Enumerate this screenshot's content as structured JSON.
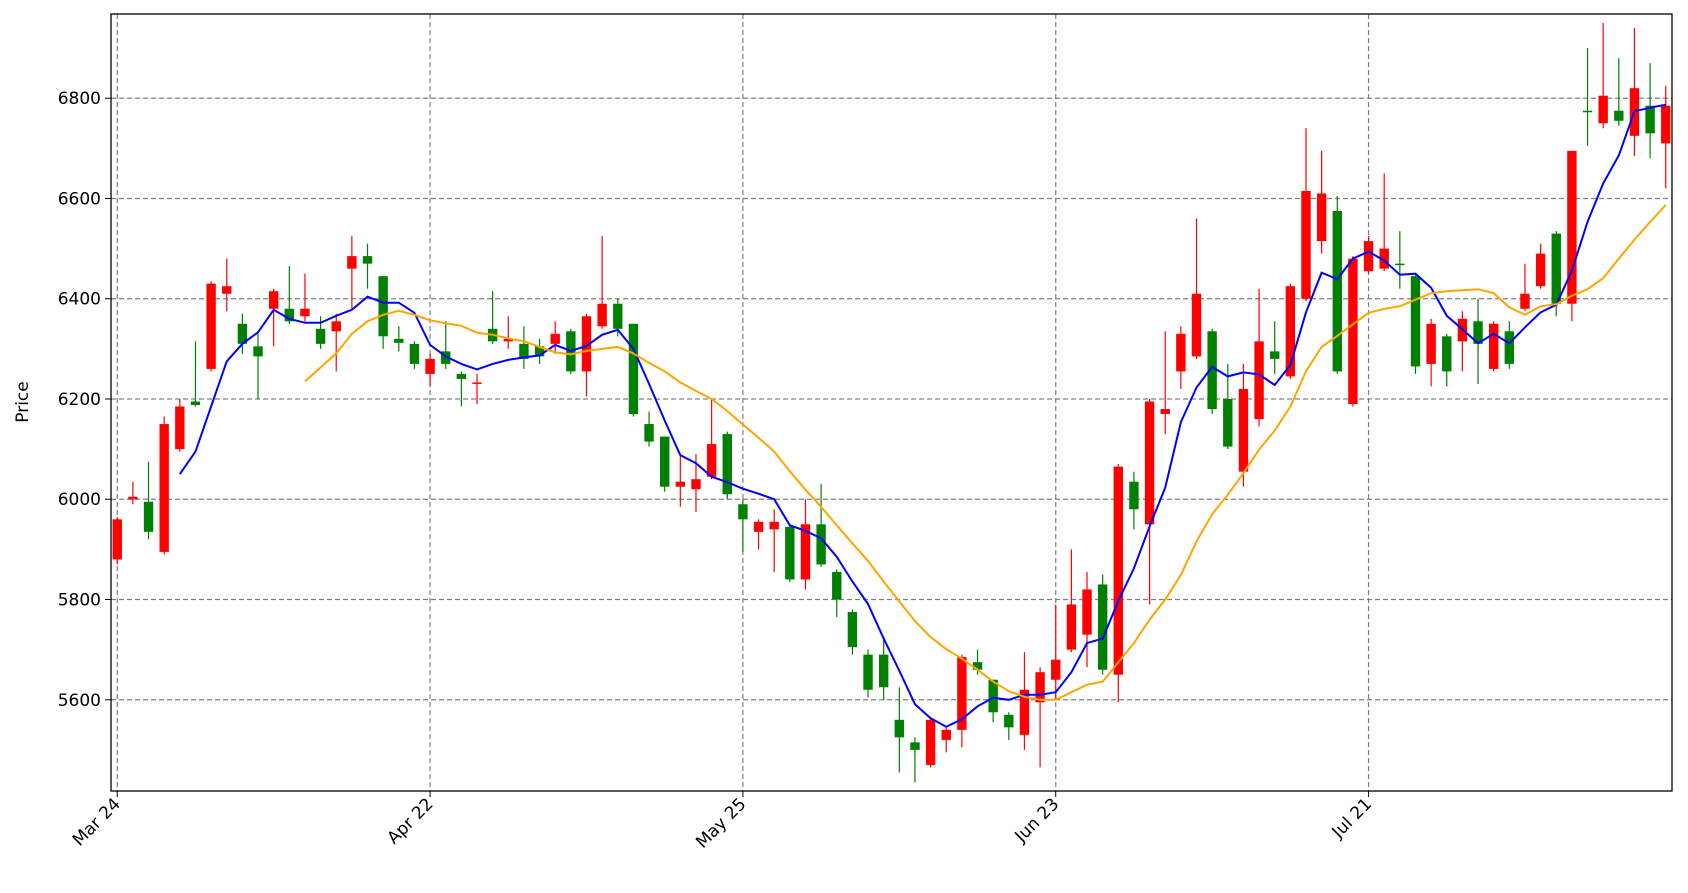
{
  "chart_data": {
    "type": "candlestick",
    "ylabel": "Price",
    "categories": [
      "Mar 24",
      null,
      null,
      null,
      null,
      null,
      null,
      null,
      null,
      null,
      null,
      null,
      null,
      null,
      null,
      null,
      null,
      null,
      null,
      null,
      "Apr 22",
      null,
      null,
      null,
      null,
      null,
      null,
      null,
      null,
      null,
      null,
      null,
      null,
      null,
      null,
      null,
      null,
      null,
      null,
      null,
      "May 25",
      null,
      null,
      null,
      null,
      null,
      null,
      null,
      null,
      null,
      null,
      null,
      null,
      null,
      null,
      null,
      null,
      null,
      null,
      null,
      "Jun 23",
      null,
      null,
      null,
      null,
      null,
      null,
      null,
      null,
      null,
      null,
      null,
      null,
      null,
      null,
      null,
      null,
      null,
      null,
      null,
      "Jul 21",
      null,
      null,
      null,
      null,
      null,
      null,
      null,
      null,
      null,
      null,
      null,
      null,
      null,
      null,
      null,
      null,
      null,
      null,
      null
    ],
    "open": [
      5880,
      6000,
      5995,
      5895,
      6100,
      6195,
      6260,
      6410,
      6350,
      6305,
      6380,
      6380,
      6365,
      6340,
      6335,
      6460,
      6485,
      6445,
      6320,
      6310,
      6250,
      6295,
      6250,
      6230,
      6340,
      6315,
      6310,
      6305,
      6310,
      6335,
      6255,
      6345,
      6390,
      6350,
      6150,
      6125,
      6025,
      6020,
      6045,
      6130,
      5990,
      5935,
      5940,
      5945,
      5840,
      5950,
      5855,
      5775,
      5690,
      5690,
      5560,
      5515,
      5470,
      5520,
      5540,
      5675,
      5640,
      5570,
      5530,
      5595,
      5640,
      5700,
      5730,
      5830,
      5650,
      6035,
      5950,
      6170,
      6255,
      6285,
      6335,
      6200,
      6055,
      6160,
      6295,
      6245,
      6400,
      6515,
      6575,
      6190,
      6455,
      6460,
      6470,
      6445,
      6270,
      6325,
      6315,
      6355,
      6260,
      6335,
      6380,
      6425,
      6530,
      6390,
      6775,
      6750,
      6775,
      6725,
      6785,
      6710
    ],
    "high": [
      5965,
      6035,
      6075,
      6165,
      6200,
      6315,
      6435,
      6480,
      6370,
      6330,
      6420,
      6465,
      6450,
      6365,
      6370,
      6525,
      6510,
      6445,
      6345,
      6315,
      6290,
      6355,
      6255,
      6250,
      6415,
      6365,
      6345,
      6320,
      6355,
      6340,
      6370,
      6525,
      6400,
      6350,
      6175,
      6125,
      6090,
      6090,
      6200,
      6135,
      6000,
      5960,
      5980,
      5950,
      6000,
      6030,
      5860,
      5780,
      5700,
      5725,
      5625,
      5525,
      5565,
      5545,
      5690,
      5700,
      5640,
      5575,
      5695,
      5665,
      5790,
      5900,
      5855,
      5850,
      6070,
      6055,
      6200,
      6335,
      6345,
      6560,
      6340,
      6270,
      6270,
      6420,
      6355,
      6430,
      6740,
      6695,
      6605,
      6485,
      6525,
      6650,
      6535,
      6450,
      6360,
      6330,
      6375,
      6400,
      6355,
      6355,
      6470,
      6510,
      6535,
      6695,
      6900,
      6950,
      6880,
      6940,
      6870,
      6825
    ],
    "low": [
      5870,
      5990,
      5920,
      5890,
      6095,
      6185,
      6255,
      6375,
      6290,
      6200,
      6305,
      6350,
      6355,
      6300,
      6255,
      6380,
      6420,
      6300,
      6295,
      6260,
      6225,
      6260,
      6185,
      6190,
      6310,
      6300,
      6260,
      6270,
      6290,
      6250,
      6205,
      6340,
      6325,
      6165,
      6105,
      6015,
      5985,
      5975,
      6040,
      6000,
      5895,
      5900,
      5855,
      5835,
      5820,
      5865,
      5765,
      5690,
      5605,
      5600,
      5455,
      5435,
      5465,
      5495,
      5505,
      5650,
      5555,
      5520,
      5500,
      5465,
      5600,
      5695,
      5665,
      5650,
      5595,
      5940,
      5790,
      6130,
      6220,
      6280,
      6170,
      6100,
      6025,
      6145,
      6250,
      6240,
      6395,
      6490,
      6250,
      6185,
      6450,
      6455,
      6420,
      6250,
      6225,
      6225,
      6255,
      6230,
      6255,
      6260,
      6375,
      6420,
      6365,
      6355,
      6705,
      6740,
      6745,
      6685,
      6680,
      6620
    ],
    "close": [
      5960,
      6005,
      5935,
      6150,
      6185,
      6188,
      6430,
      6425,
      6310,
      6285,
      6415,
      6355,
      6380,
      6310,
      6355,
      6485,
      6470,
      6325,
      6312,
      6270,
      6280,
      6270,
      6240,
      6233,
      6315,
      6320,
      6280,
      6285,
      6330,
      6255,
      6365,
      6390,
      6340,
      6170,
      6115,
      6025,
      6035,
      6040,
      6110,
      6010,
      5960,
      5955,
      5955,
      5840,
      5950,
      5870,
      5800,
      5705,
      5620,
      5625,
      5525,
      5500,
      5560,
      5540,
      5685,
      5660,
      5575,
      5545,
      5620,
      5655,
      5680,
      5790,
      5820,
      5660,
      6065,
      5980,
      6195,
      6180,
      6330,
      6410,
      6180,
      6105,
      6220,
      6315,
      6280,
      6425,
      6615,
      6610,
      6255,
      6480,
      6515,
      6500,
      6467,
      6265,
      6350,
      6255,
      6360,
      6310,
      6350,
      6270,
      6410,
      6490,
      6390,
      6695,
      6772,
      6805,
      6755,
      6820,
      6730,
      6785
    ],
    "up_color": "red",
    "down_color": "green",
    "series": [
      {
        "color": "blue",
        "values": [
          null,
          null,
          null,
          null,
          6050,
          6095,
          6185,
          6275,
          6310,
          6333,
          6378,
          6360,
          6352,
          6352,
          6366,
          6378,
          6404,
          6392,
          6392,
          6372,
          6308,
          6285,
          6270,
          6259,
          6270,
          6278,
          6283,
          6287,
          6308,
          6296,
          6306,
          6328,
          6338,
          6300,
          6230,
          6157,
          6088,
          6072,
          6045,
          6034,
          6021,
          6011,
          6000,
          5948,
          5937,
          5922,
          5885,
          5836,
          5791,
          5722,
          5658,
          5591,
          5563,
          5546,
          5561,
          5587,
          5604,
          5600,
          5610,
          5610,
          5615,
          5655,
          5713,
          5722,
          5797,
          5862,
          5946,
          6023,
          6154,
          6223,
          6264,
          6245,
          6253,
          6249,
          6228,
          6268,
          6373,
          6452,
          6439,
          6480,
          6494,
          6476,
          6448,
          6450,
          6422,
          6366,
          6339,
          6311,
          6330,
          6311,
          6343,
          6373,
          6388,
          6456,
          6553,
          6630,
          6686,
          6774,
          6781,
          6787
        ]
      },
      {
        "color": "orange",
        "values": [
          null,
          null,
          null,
          null,
          null,
          null,
          null,
          null,
          null,
          null,
          null,
          null,
          6235,
          6263,
          6291,
          6330,
          6355,
          6368,
          6376,
          6368,
          6357,
          6351,
          6346,
          6332,
          6328,
          6321,
          6315,
          6304,
          6293,
          6289,
          6296,
          6300,
          6304,
          6291,
          6272,
          6255,
          6233,
          6216,
          6200,
          6176,
          6149,
          6123,
          6095,
          6056,
          6019,
          5985,
          5948,
          5912,
          5877,
          5836,
          5796,
          5757,
          5725,
          5701,
          5682,
          5660,
          5636,
          5617,
          5606,
          5600,
          5600,
          5615,
          5630,
          5636,
          5675,
          5713,
          5760,
          5800,
          5849,
          5916,
          5970,
          6009,
          6052,
          6099,
          6137,
          6185,
          6255,
          6304,
          6326,
          6349,
          6372,
          6380,
          6385,
          6398,
          6411,
          6415,
          6417,
          6419,
          6411,
          6383,
          6368,
          6385,
          6389,
          6406,
          6419,
          6441,
          6480,
          6518,
          6553,
          6587
        ]
      }
    ],
    "ylim": [
      5418,
      6968
    ],
    "yticks": [
      5600,
      5800,
      6000,
      6200,
      6400,
      6600,
      6800
    ],
    "grid": true
  }
}
